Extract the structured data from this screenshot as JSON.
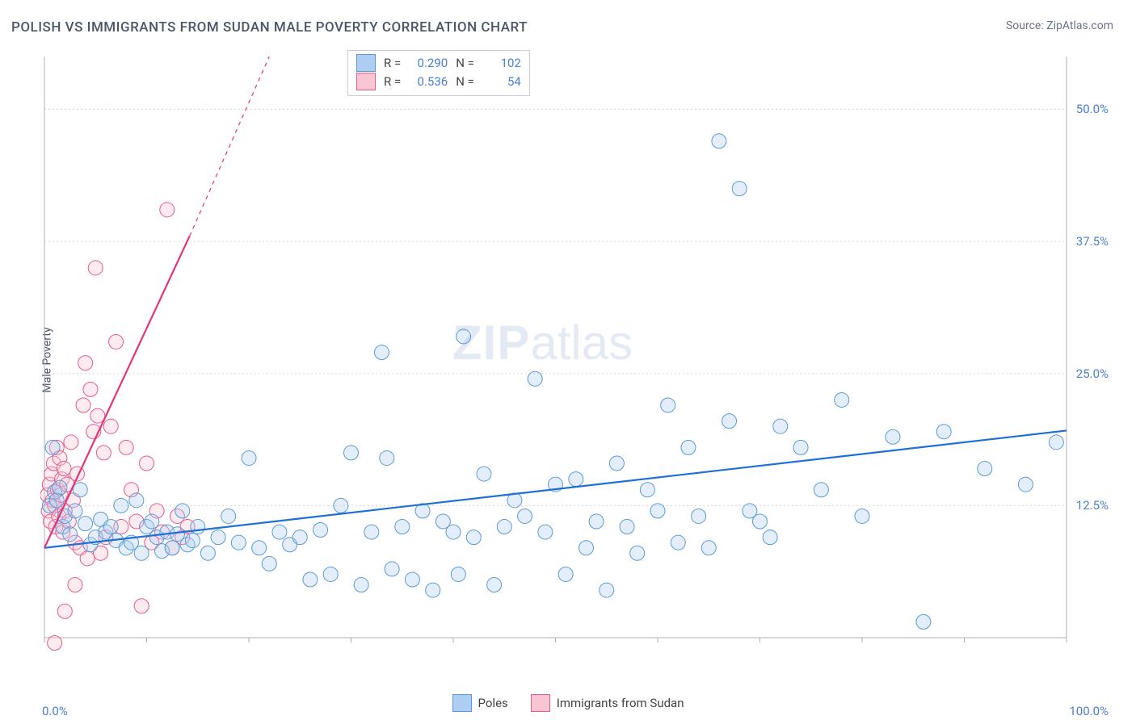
{
  "title": "POLISH VS IMMIGRANTS FROM SUDAN MALE POVERTY CORRELATION CHART",
  "source": "Source: ZipAtlas.com",
  "ylabel": "Male Poverty",
  "watermark_zip": "ZIP",
  "watermark_atlas": "atlas",
  "chart": {
    "type": "scatter",
    "background_color": "#ffffff",
    "grid_color": "#d8d8d8",
    "axis_color": "#b0b0b0",
    "tick_label_color": "#4a7fd6",
    "xlim": [
      0,
      100
    ],
    "ylim": [
      0,
      55
    ],
    "y_gridlines": [
      12.5,
      25.0,
      37.5,
      50.0
    ],
    "y_gridline_labels": [
      "12.5%",
      "25.0%",
      "37.5%",
      "50.0%"
    ],
    "x_ticks": [
      0,
      10,
      20,
      30,
      40,
      50,
      60,
      70,
      80,
      90,
      100
    ],
    "x_label_min": "0.0%",
    "x_label_max": "100.0%",
    "marker_radius": 9,
    "marker_fill_opacity": 0.35,
    "line_width": 2.2,
    "series": {
      "poles": {
        "label": "Poles",
        "color_fill": "#aecdf2",
        "color_stroke": "#5a9bd5",
        "line_color": "#1f6fd6",
        "R": "0.290",
        "N": "102",
        "regression": {
          "x1": 0,
          "y1": 8.5,
          "x2": 100,
          "y2": 19.6
        },
        "points": [
          [
            0.5,
            12.5
          ],
          [
            0.8,
            18.0
          ],
          [
            1.0,
            13.8
          ],
          [
            1.2,
            13.0
          ],
          [
            1.5,
            14.2
          ],
          [
            1.8,
            10.5
          ],
          [
            2.0,
            11.5
          ],
          [
            2.5,
            9.8
          ],
          [
            3.0,
            12.0
          ],
          [
            3.5,
            14.0
          ],
          [
            4.0,
            10.8
          ],
          [
            4.5,
            8.8
          ],
          [
            5.0,
            9.5
          ],
          [
            5.5,
            11.2
          ],
          [
            6.0,
            10.0
          ],
          [
            6.5,
            10.5
          ],
          [
            7.0,
            9.2
          ],
          [
            7.5,
            12.5
          ],
          [
            8.0,
            8.5
          ],
          [
            8.5,
            9.0
          ],
          [
            9.0,
            13.0
          ],
          [
            9.5,
            8.0
          ],
          [
            10.0,
            10.5
          ],
          [
            10.5,
            11.0
          ],
          [
            11.0,
            9.5
          ],
          [
            11.5,
            8.2
          ],
          [
            12.0,
            10.0
          ],
          [
            12.5,
            8.5
          ],
          [
            13.0,
            9.8
          ],
          [
            13.5,
            12.0
          ],
          [
            14.0,
            8.8
          ],
          [
            14.5,
            9.2
          ],
          [
            15.0,
            10.5
          ],
          [
            16.0,
            8.0
          ],
          [
            17.0,
            9.5
          ],
          [
            18.0,
            11.5
          ],
          [
            19.0,
            9.0
          ],
          [
            20.0,
            17.0
          ],
          [
            21.0,
            8.5
          ],
          [
            22.0,
            7.0
          ],
          [
            23.0,
            10.0
          ],
          [
            24.0,
            8.8
          ],
          [
            25.0,
            9.5
          ],
          [
            26.0,
            5.5
          ],
          [
            27.0,
            10.2
          ],
          [
            28.0,
            6.0
          ],
          [
            29.0,
            12.5
          ],
          [
            30.0,
            17.5
          ],
          [
            31.0,
            5.0
          ],
          [
            32.0,
            10.0
          ],
          [
            33.0,
            27.0
          ],
          [
            33.5,
            17.0
          ],
          [
            34.0,
            6.5
          ],
          [
            35.0,
            10.5
          ],
          [
            36.0,
            5.5
          ],
          [
            37.0,
            12.0
          ],
          [
            38.0,
            4.5
          ],
          [
            39.0,
            11.0
          ],
          [
            40.0,
            10.0
          ],
          [
            40.5,
            6.0
          ],
          [
            41.0,
            28.5
          ],
          [
            42.0,
            9.5
          ],
          [
            43.0,
            15.5
          ],
          [
            44.0,
            5.0
          ],
          [
            45.0,
            10.5
          ],
          [
            46.0,
            13.0
          ],
          [
            47.0,
            11.5
          ],
          [
            48.0,
            24.5
          ],
          [
            49.0,
            10.0
          ],
          [
            50.0,
            14.5
          ],
          [
            51.0,
            6.0
          ],
          [
            52.0,
            15.0
          ],
          [
            53.0,
            8.5
          ],
          [
            54.0,
            11.0
          ],
          [
            55.0,
            4.5
          ],
          [
            56.0,
            16.5
          ],
          [
            57.0,
            10.5
          ],
          [
            58.0,
            8.0
          ],
          [
            59.0,
            14.0
          ],
          [
            60.0,
            12.0
          ],
          [
            61.0,
            22.0
          ],
          [
            62.0,
            9.0
          ],
          [
            63.0,
            18.0
          ],
          [
            64.0,
            11.5
          ],
          [
            65.0,
            8.5
          ],
          [
            66.0,
            47.0
          ],
          [
            67.0,
            20.5
          ],
          [
            68.0,
            42.5
          ],
          [
            69.0,
            12.0
          ],
          [
            70.0,
            11.0
          ],
          [
            71.0,
            9.5
          ],
          [
            72.0,
            20.0
          ],
          [
            74.0,
            18.0
          ],
          [
            76.0,
            14.0
          ],
          [
            78.0,
            22.5
          ],
          [
            80.0,
            11.5
          ],
          [
            83.0,
            19.0
          ],
          [
            86.0,
            1.5
          ],
          [
            88.0,
            19.5
          ],
          [
            92.0,
            16.0
          ],
          [
            96.0,
            14.5
          ],
          [
            99.0,
            18.5
          ]
        ]
      },
      "sudan": {
        "label": "Immigrants from Sudan",
        "color_fill": "#f8c6d3",
        "color_stroke": "#e85a8a",
        "line_color": "#e53478",
        "R": "0.536",
        "N": "54",
        "regression_solid": {
          "x1": 0,
          "y1": 8.5,
          "x2": 14.2,
          "y2": 38.0
        },
        "regression_dashed": {
          "x1": 14.2,
          "y1": 38.0,
          "x2": 22.0,
          "y2": 55.0
        },
        "points": [
          [
            0.3,
            13.5
          ],
          [
            0.4,
            12.0
          ],
          [
            0.5,
            14.5
          ],
          [
            0.6,
            11.0
          ],
          [
            0.7,
            15.5
          ],
          [
            0.8,
            13.0
          ],
          [
            0.9,
            16.5
          ],
          [
            1.0,
            12.5
          ],
          [
            1.1,
            10.5
          ],
          [
            1.2,
            18.0
          ],
          [
            1.3,
            14.0
          ],
          [
            1.4,
            11.5
          ],
          [
            1.5,
            17.0
          ],
          [
            1.6,
            13.5
          ],
          [
            1.7,
            15.0
          ],
          [
            1.8,
            10.0
          ],
          [
            1.9,
            16.0
          ],
          [
            2.0,
            12.0
          ],
          [
            2.2,
            14.5
          ],
          [
            2.4,
            11.0
          ],
          [
            2.6,
            18.5
          ],
          [
            2.8,
            13.0
          ],
          [
            3.0,
            9.0
          ],
          [
            3.2,
            15.5
          ],
          [
            3.5,
            8.5
          ],
          [
            3.8,
            22.0
          ],
          [
            4.0,
            26.0
          ],
          [
            4.2,
            7.5
          ],
          [
            4.5,
            23.5
          ],
          [
            4.8,
            19.5
          ],
          [
            5.0,
            35.0
          ],
          [
            5.2,
            21.0
          ],
          [
            5.5,
            8.0
          ],
          [
            5.8,
            17.5
          ],
          [
            6.0,
            9.5
          ],
          [
            6.5,
            20.0
          ],
          [
            7.0,
            28.0
          ],
          [
            7.5,
            10.5
          ],
          [
            8.0,
            18.0
          ],
          [
            8.5,
            14.0
          ],
          [
            9.0,
            11.0
          ],
          [
            9.5,
            3.0
          ],
          [
            10.0,
            16.5
          ],
          [
            10.5,
            9.0
          ],
          [
            11.0,
            12.0
          ],
          [
            11.5,
            10.0
          ],
          [
            12.0,
            40.5
          ],
          [
            12.5,
            8.5
          ],
          [
            13.0,
            11.5
          ],
          [
            13.5,
            9.5
          ],
          [
            14.0,
            10.5
          ],
          [
            1.0,
            -0.5
          ],
          [
            2.0,
            2.5
          ],
          [
            3.0,
            5.0
          ]
        ]
      }
    }
  },
  "legend_top": {
    "r_label": "R =",
    "n_label": "N ="
  },
  "legend_bottom": {
    "poles_label": "Poles",
    "sudan_label": "Immigrants from Sudan"
  }
}
